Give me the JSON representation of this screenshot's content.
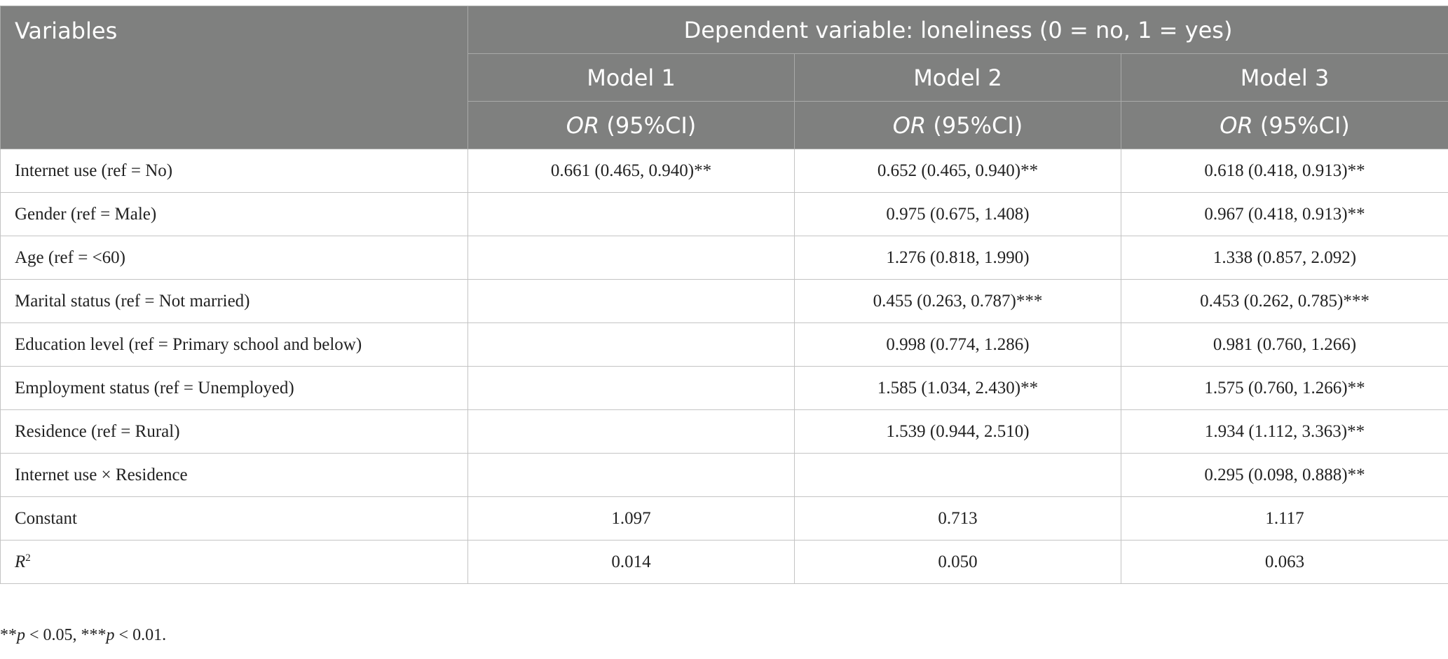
{
  "header": {
    "variables_label": "Variables",
    "dependent_label": "Dependent variable: loneliness (0 = no, 1 = yes)",
    "models": [
      "Model 1",
      "Model 2",
      "Model 3"
    ],
    "stat_prefix": "OR",
    "stat_suffix": " (95%CI)"
  },
  "rows": [
    {
      "label": "Internet use (ref = No)",
      "m1": "0.661 (0.465, 0.940)**",
      "m2": "0.652 (0.465, 0.940)**",
      "m3": "0.618 (0.418, 0.913)**"
    },
    {
      "label": "Gender (ref = Male)",
      "m1": "",
      "m2": "0.975 (0.675, 1.408)",
      "m3": "0.967 (0.418, 0.913)**"
    },
    {
      "label": "Age (ref = <60)",
      "m1": "",
      "m2": "1.276 (0.818, 1.990)",
      "m3": "1.338 (0.857, 2.092)"
    },
    {
      "label": "Marital status (ref = Not married)",
      "m1": "",
      "m2": "0.455 (0.263, 0.787)***",
      "m3": "0.453 (0.262, 0.785)***"
    },
    {
      "label": "Education level (ref = Primary school and below)",
      "m1": "",
      "m2": "0.998 (0.774, 1.286)",
      "m3": "0.981 (0.760, 1.266)"
    },
    {
      "label": "Employment status (ref = Unemployed)",
      "m1": "",
      "m2": "1.585 (1.034, 2.430)**",
      "m3": "1.575 (0.760, 1.266)**"
    },
    {
      "label": "Residence (ref = Rural)",
      "m1": "",
      "m2": "1.539 (0.944, 2.510)",
      "m3": "1.934 (1.112, 3.363)**"
    },
    {
      "label": "Internet use × Residence",
      "m1": "",
      "m2": "",
      "m3": "0.295 (0.098, 0.888)**"
    },
    {
      "label": "Constant",
      "m1": "1.097",
      "m2": "0.713",
      "m3": "1.117"
    }
  ],
  "r2_row": {
    "label_main": "R",
    "label_sup": "2",
    "m1": "0.014",
    "m2": "0.050",
    "m3": "0.063"
  },
  "footnote": {
    "part1_stars": "**",
    "part1_p": "p",
    "part1_rest": " < 0.05, ",
    "part2_stars": "***",
    "part2_p": "p",
    "part2_rest": " < 0.01."
  },
  "colors": {
    "header_bg": "#7f807f",
    "header_text": "#ffffff",
    "grid": "#c4c4c4"
  }
}
